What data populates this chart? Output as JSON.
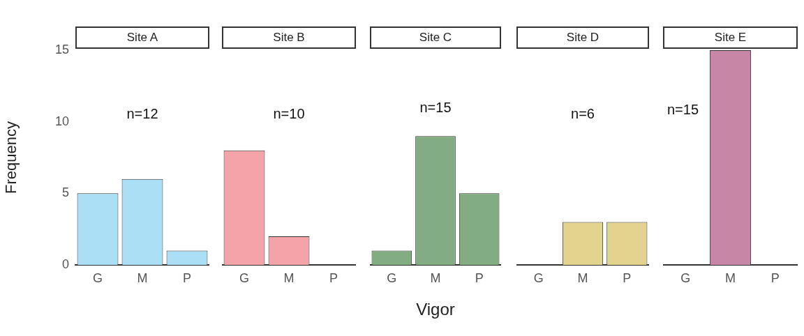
{
  "chart_data": [
    {
      "type": "bar",
      "title": "Site A",
      "categories": [
        "G",
        "M",
        "P"
      ],
      "values": [
        5,
        6,
        1
      ],
      "color": "#aadff5",
      "ylim": [
        0,
        15
      ],
      "yticks": [
        0,
        5,
        10,
        15
      ],
      "ylabel": "Frequency",
      "annotations": [
        "n=12"
      ],
      "grid": false,
      "legend": false
    },
    {
      "type": "bar",
      "title": "Site B",
      "categories": [
        "G",
        "M",
        "P"
      ],
      "values": [
        8,
        2,
        0
      ],
      "color": "#f4a3a8",
      "ylim": [
        0,
        15
      ],
      "tick_labels": "x",
      "annotations": [
        "n=10"
      ],
      "grid": false,
      "legend": false
    },
    {
      "type": "bar",
      "title": "Site C",
      "categories": [
        "G",
        "M",
        "P"
      ],
      "values": [
        1,
        9,
        5
      ],
      "color": "#82ad82",
      "ylim": [
        0,
        15
      ],
      "tick_labels": "x",
      "xlabel": "Vigor",
      "annotations": [
        "n=15"
      ],
      "grid": false,
      "legend": false
    },
    {
      "type": "bar",
      "title": "Site D",
      "categories": [
        "G",
        "M",
        "P"
      ],
      "values": [
        0,
        3,
        3
      ],
      "color": "#e2d48f",
      "ylim": [
        0,
        15
      ],
      "tick_labels": "x",
      "annotations": [
        "n=6"
      ],
      "grid": false,
      "legend": false
    },
    {
      "type": "bar",
      "title": "Site E",
      "categories": [
        "G",
        "M",
        "P"
      ],
      "values": [
        0,
        15,
        0
      ],
      "color": "#c886a6",
      "ylim": [
        0,
        15
      ],
      "tick_labels": "x",
      "annotations": [
        "n=15"
      ],
      "grid": false,
      "legend": false
    }
  ]
}
